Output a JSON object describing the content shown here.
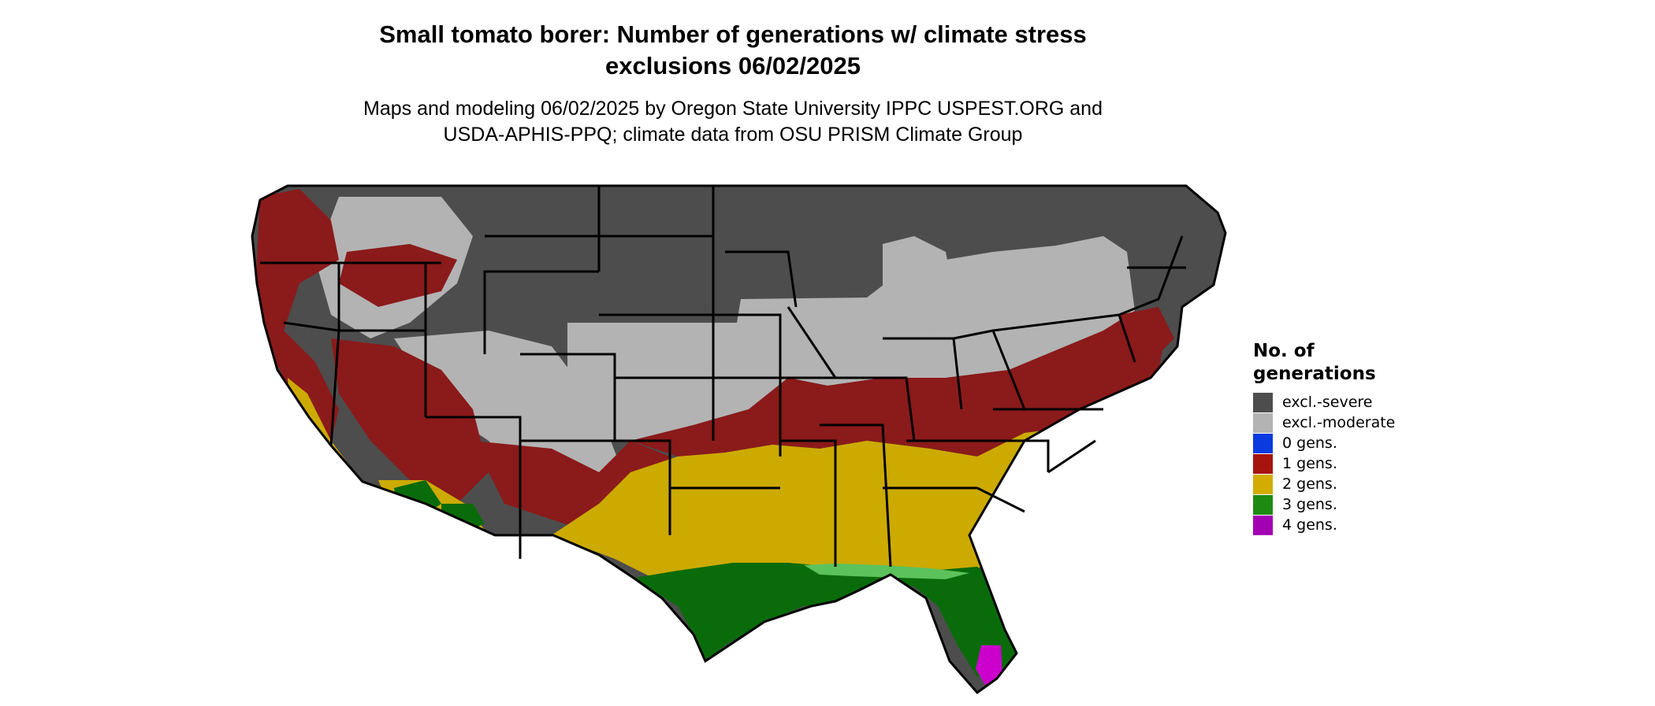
{
  "title_line1": "Small tomato borer: Number of generations w/ climate stress",
  "title_line2": "exclusions 06/02/2025",
  "subtitle_line1": "Maps and modeling 06/02/2025 by Oregon State University IPPC USPEST.ORG and",
  "subtitle_line2": "USDA-APHIS-PPQ; climate data from OSU PRISM Climate Group",
  "legend": {
    "title_line1": "No. of",
    "title_line2": "generations",
    "items": [
      {
        "label": "excl.-severe",
        "color": "#4d4d4d"
      },
      {
        "label": "excl.-moderate",
        "color": "#b3b3b3"
      },
      {
        "label": "0 gens.",
        "color": "#0a3ae0"
      },
      {
        "label": "1 gens.",
        "color": "#a5150e"
      },
      {
        "label": "2 gens.",
        "color": "#d2ad00"
      },
      {
        "label": "3 gens.",
        "color": "#1f8a12"
      },
      {
        "label": "4 gens.",
        "color": "#a300b3"
      }
    ]
  },
  "map_colors": {
    "excl_severe": "#4d4d4d",
    "excl_moderate": "#b3b3b3",
    "gens_1": "#8b1a1a",
    "gens_2": "#ccaa00",
    "gens_3": "#0a6b0a",
    "gens_3_light": "#5cc25c",
    "gens_4": "#cc00cc",
    "border": "#000000"
  }
}
